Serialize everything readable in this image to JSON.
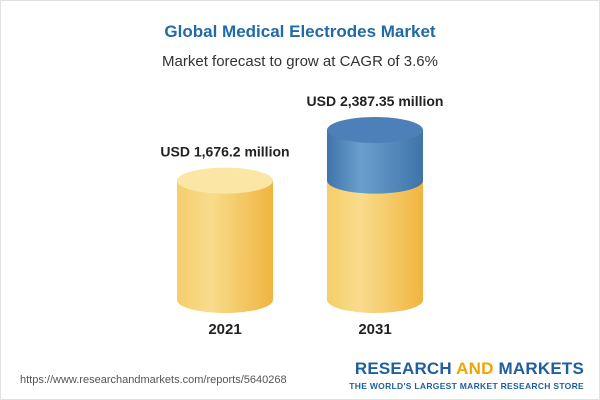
{
  "header": {
    "title": "Global Medical Electrodes Market",
    "subtitle": "Market forecast to grow at CAGR of 3.6%"
  },
  "footer": {
    "source_url": "https://www.researchandmarkets.com/reports/5640268",
    "brand_part1": "RESEARCH ",
    "brand_part2": "AND",
    "brand_part3": " MARKETS",
    "brand_tagline": "THE WORLD'S LARGEST MARKET RESEARCH STORE"
  },
  "colors": {
    "base_light": "#f8dc8c",
    "base_mid": "#f6ce6a",
    "base_dark": "#f0b53f",
    "base_top": "#fbe6a5",
    "growth_light": "#6a9fcd",
    "growth_dark": "#3f74a9",
    "growth_top": "#4d80b8"
  },
  "chart_data": {
    "type": "bar",
    "title": "Global Medical Electrodes Market",
    "subtitle": "Market forecast to grow at CAGR of 3.6%",
    "categories": [
      "2021",
      "2031"
    ],
    "values": [
      1676.2,
      2387.35
    ],
    "value_labels": [
      "USD 1,676.2 million",
      "USD 2,387.35 million"
    ],
    "units": "USD million",
    "cagr": "3.6%"
  }
}
